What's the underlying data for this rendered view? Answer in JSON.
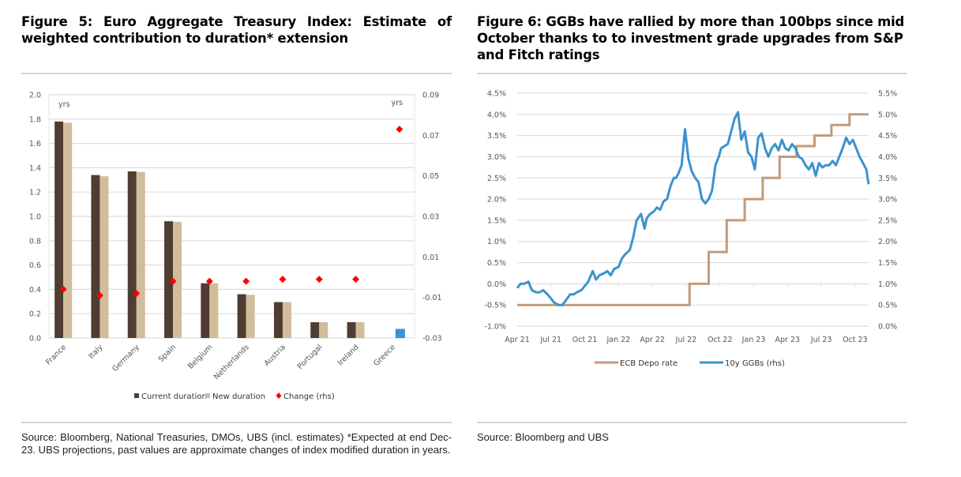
{
  "figure5": {
    "title": "Figure 5: Euro Aggregate Treasury Index: Estimate of weighted contribution to duration* extension",
    "source": "Source: Bloomberg, National Treasuries, DMOs, UBS (incl. estimates) *Expected at end Dec-23. UBS projections, past values are approximate changes of index modified duration in years."
  },
  "figure6": {
    "title": "Figure 6: GGBs have rallied by more than 100bps since mid October thanks to to investment grade upgrades from S&P and Fitch ratings",
    "source": "Source: Bloomberg and UBS"
  },
  "chart_data": [
    {
      "type": "bar",
      "title": "Euro Aggregate Treasury Index: Estimate of weighted contribution to duration* extension",
      "categories": [
        "France",
        "Italy",
        "Germany",
        "Spain",
        "Belgium",
        "Netherlands",
        "Austria",
        "Portugal",
        "Ireland",
        "Greece"
      ],
      "series": [
        {
          "name": "Current duration",
          "axis": "left",
          "color": "#4e3d30",
          "values": [
            1.78,
            1.34,
            1.37,
            0.96,
            0.45,
            0.36,
            0.295,
            0.13,
            0.13,
            null
          ]
        },
        {
          "name": "New duration",
          "axis": "left",
          "color": "#d1bd9b",
          "values": [
            1.77,
            1.33,
            1.365,
            0.955,
            0.45,
            0.355,
            0.295,
            0.13,
            0.13,
            null
          ]
        },
        {
          "name": "Greece",
          "axis": "left",
          "color": "#3a93cf",
          "values": [
            null,
            null,
            null,
            null,
            null,
            null,
            null,
            null,
            null,
            0.075
          ],
          "legend": false
        },
        {
          "name": "Change (rhs)",
          "axis": "right",
          "type": "scatter",
          "marker": "diamond",
          "color": "#ff0000",
          "values": [
            -0.006,
            -0.009,
            -0.008,
            -0.002,
            -0.002,
            -0.002,
            -0.001,
            -0.001,
            -0.001,
            0.073
          ]
        }
      ],
      "ylabel_left": "yrs",
      "ylabel_right": "yrs",
      "ylim": [
        0.0,
        2.0
      ],
      "yticks": [
        "0.0",
        "0.2",
        "0.4",
        "0.6",
        "0.8",
        "1.0",
        "1.2",
        "1.4",
        "1.6",
        "1.8",
        "2.0"
      ],
      "ylim_right": [
        -0.03,
        0.09
      ],
      "yticks_right": [
        "-0.03",
        "-0.01",
        "0.01",
        "0.03",
        "0.05",
        "0.07",
        "0.09"
      ],
      "grid": true,
      "legend": [
        "Current duration",
        "New duration",
        "Change (rhs)"
      ],
      "legend_position": "bottom"
    },
    {
      "type": "line",
      "title": "GGBs have rallied by more than 100bps since mid October thanks to to investment grade upgrades from S&P and Fitch ratings",
      "xticks": [
        "Apr 21",
        "Jul 21",
        "Oct 21",
        "Jan 22",
        "Apr 22",
        "Jul 22",
        "Oct 22",
        "Jan 23",
        "Apr 23",
        "Jul 23",
        "Oct 23"
      ],
      "ylim": [
        -1.0,
        4.5
      ],
      "yticks": [
        "-1.0%",
        "-0.5%",
        "0.0%",
        "0.5%",
        "1.0%",
        "1.5%",
        "2.0%",
        "2.5%",
        "3.0%",
        "3.5%",
        "4.0%",
        "4.5%"
      ],
      "ylim_right": [
        0.0,
        5.5
      ],
      "yticks_right": [
        "0.0%",
        "0.5%",
        "1.0%",
        "1.5%",
        "2.0%",
        "2.5%",
        "3.0%",
        "3.5%",
        "4.0%",
        "4.5%",
        "5.0%",
        "5.5%"
      ],
      "grid": true,
      "legend_position": "bottom",
      "series": [
        {
          "name": "ECB Depo rate",
          "axis": "left",
          "color": "#c49a78",
          "step": true,
          "x": [
            0,
            15.3,
            15.3,
            17.0,
            17.0,
            18.6,
            18.6,
            20.2,
            20.2,
            21.8,
            21.8,
            23.3,
            23.3,
            24.8,
            24.8,
            26.4,
            26.4,
            27.9,
            27.9,
            29.5,
            29.5,
            31.2
          ],
          "values": [
            -0.5,
            -0.5,
            0.0,
            0.0,
            0.75,
            0.75,
            1.5,
            1.5,
            2.0,
            2.0,
            2.5,
            2.5,
            3.0,
            3.0,
            3.25,
            3.25,
            3.5,
            3.5,
            3.75,
            3.75,
            4.0,
            4.0
          ],
          "x_unit": "months since Apr 21"
        },
        {
          "name": "10y GGBs (rhs)",
          "axis": "right",
          "color": "#3a93cf",
          "x_unit": "months since Apr 21",
          "x": [
            0,
            0.3,
            0.6,
            1.0,
            1.3,
            1.7,
            2.0,
            2.3,
            2.7,
            3.0,
            3.3,
            3.7,
            4.0,
            4.3,
            4.7,
            5.0,
            5.3,
            5.7,
            6.0,
            6.3,
            6.7,
            7.0,
            7.3,
            7.7,
            8.0,
            8.3,
            8.6,
            9.0,
            9.3,
            9.6,
            10.0,
            10.3,
            10.6,
            11.0,
            11.3,
            11.5,
            11.8,
            12.1,
            12.4,
            12.7,
            13.0,
            13.3,
            13.6,
            13.9,
            14.1,
            14.3,
            14.6,
            14.9,
            15.2,
            15.5,
            15.8,
            16.1,
            16.4,
            16.7,
            17.0,
            17.3,
            17.6,
            17.9,
            18.1,
            18.4,
            18.7,
            19.0,
            19.3,
            19.6,
            19.9,
            20.2,
            20.5,
            20.8,
            21.1,
            21.4,
            21.7,
            22.0,
            22.3,
            22.6,
            22.9,
            23.2,
            23.5,
            23.8,
            24.1,
            24.4,
            24.7,
            25.0,
            25.3,
            25.6,
            25.9,
            26.2,
            26.5,
            26.8,
            27.1,
            27.4,
            27.7,
            28.0,
            28.3,
            28.6,
            28.9,
            29.2,
            29.5,
            29.8,
            30.1,
            30.4,
            30.7,
            31.0,
            31.2
          ],
          "values": [
            0.9,
            1.0,
            1.0,
            1.05,
            0.85,
            0.8,
            0.8,
            0.85,
            0.75,
            0.65,
            0.55,
            0.5,
            0.5,
            0.6,
            0.75,
            0.75,
            0.8,
            0.85,
            0.95,
            1.05,
            1.3,
            1.1,
            1.2,
            1.25,
            1.3,
            1.2,
            1.35,
            1.4,
            1.6,
            1.7,
            1.8,
            2.1,
            2.5,
            2.65,
            2.3,
            2.55,
            2.65,
            2.7,
            2.8,
            2.75,
            2.95,
            3.0,
            3.3,
            3.5,
            3.5,
            3.6,
            3.8,
            4.65,
            3.95,
            3.65,
            3.5,
            3.4,
            3.0,
            2.9,
            3.0,
            3.2,
            3.8,
            4.0,
            4.2,
            4.25,
            4.3,
            4.6,
            4.9,
            5.05,
            4.4,
            4.6,
            4.1,
            4.0,
            3.7,
            4.45,
            4.55,
            4.2,
            4.0,
            4.2,
            4.3,
            4.15,
            4.4,
            4.2,
            4.15,
            4.3,
            4.2,
            4.0,
            3.95,
            3.8,
            3.7,
            3.85,
            3.55,
            3.85,
            3.75,
            3.8,
            3.8,
            3.9,
            3.8,
            4.0,
            4.2,
            4.45,
            4.3,
            4.4,
            4.2,
            4.0,
            3.85,
            3.7,
            3.35
          ]
        }
      ]
    }
  ]
}
